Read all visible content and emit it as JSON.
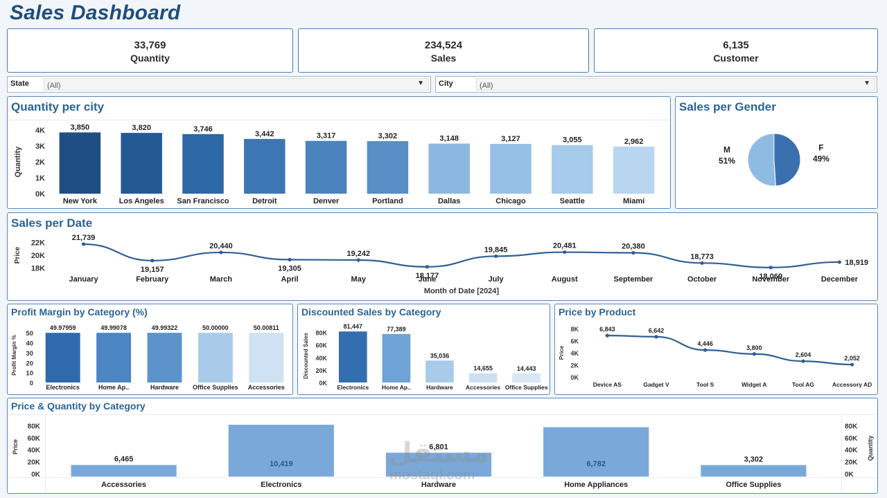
{
  "page_title": "Sales Dashboard",
  "kpis": [
    {
      "value": "33,769",
      "label": "Quantity"
    },
    {
      "value": "234,524",
      "label": "Sales"
    },
    {
      "value": "6,135",
      "label": "Customer"
    }
  ],
  "filters": {
    "state": {
      "label": "State",
      "value": "(All)"
    },
    "city": {
      "label": "City",
      "value": "(All)"
    }
  },
  "watermark": {
    "text": "مستقل",
    "subtext": "mostaql.com"
  },
  "colors": {
    "dark": "#1f4e7a",
    "mid": "#3f7ab6",
    "light": "#b8d5ef",
    "line": "#2f5f94",
    "title": "#2a6496"
  },
  "chart_data": [
    {
      "id": "qty_city",
      "type": "bar",
      "title": "Quantity per city",
      "ylabel": "Quantity",
      "xlabel": "",
      "ylim": [
        0,
        4000
      ],
      "yticks": [
        "0K",
        "1K",
        "2K",
        "3K",
        "4K"
      ],
      "categories": [
        "New York",
        "Los Angeles",
        "San Francisco",
        "Detroit",
        "Denver",
        "Portland",
        "Dallas",
        "Chicago",
        "Seattle",
        "Miami"
      ],
      "values": [
        3850,
        3820,
        3746,
        3442,
        3317,
        3302,
        3148,
        3127,
        3055,
        2962
      ],
      "labels": [
        "3,850",
        "3,820",
        "3,746",
        "3,442",
        "3,317",
        "3,302",
        "3,148",
        "3,127",
        "3,055",
        "2,962"
      ],
      "colors": [
        "#1f4e85",
        "#245a94",
        "#2c67a6",
        "#3d77b3",
        "#4a83bd",
        "#578fc6",
        "#8bb8e0",
        "#97c0e5",
        "#a7cbea",
        "#b9d6f0"
      ],
      "grid": false
    },
    {
      "id": "gender",
      "type": "pie",
      "title": "Sales per Gender",
      "slices": [
        {
          "name": "F",
          "value": 49,
          "label": "49%",
          "color": "#3a6fae"
        },
        {
          "name": "M",
          "value": 51,
          "label": "51%",
          "color": "#8fbbe3"
        }
      ]
    },
    {
      "id": "sales_date",
      "type": "line",
      "title": "Sales per Date",
      "ylabel": "Price",
      "xlabel": "Month of Date [2024]",
      "ylim": [
        17500,
        22500
      ],
      "yticks": [
        "18K",
        "20K",
        "22K"
      ],
      "categories": [
        "January",
        "February",
        "March",
        "April",
        "May",
        "June",
        "July",
        "August",
        "September",
        "October",
        "November",
        "December"
      ],
      "values": [
        21739,
        19157,
        20440,
        19305,
        19242,
        18177,
        19845,
        20481,
        20380,
        18773,
        18069,
        18919
      ],
      "labels": [
        "21,739",
        "19,157",
        "20,440",
        "19,305",
        "19,242",
        "18,177",
        "19,845",
        "20,481",
        "20,380",
        "18,773",
        "18,069",
        "18,919"
      ]
    },
    {
      "id": "profit_margin",
      "type": "bar",
      "title": "Profit Margin by Category (%)",
      "ylabel": "Profit Margin %",
      "ylim": [
        0,
        55
      ],
      "yticks": [
        "0",
        "10",
        "20",
        "30",
        "40",
        "50"
      ],
      "categories": [
        "Electronics",
        "Home Ap..",
        "Hardware",
        "Office Supplies",
        "Accessories"
      ],
      "values": [
        49.97959,
        49.99078,
        49.99322,
        50.0,
        50.00811
      ],
      "labels": [
        "49.97959",
        "49.99078",
        "49.99322",
        "50.00000",
        "50.00811"
      ],
      "colors": [
        "#2f6aac",
        "#4b85c2",
        "#5c93cb",
        "#a8cbea",
        "#cfe2f3"
      ]
    },
    {
      "id": "discounted",
      "type": "bar",
      "title": "Discounted Sales by Category",
      "ylabel": "Discounted Sales",
      "ylim": [
        0,
        85000
      ],
      "yticks": [
        "0K",
        "20K",
        "40K",
        "60K",
        "80K"
      ],
      "categories": [
        "Electronics",
        "Home Ap..",
        "Hardware",
        "Accessories",
        "Office Supplies"
      ],
      "values": [
        81447,
        77389,
        35036,
        14655,
        14443
      ],
      "labels": [
        "81,447",
        "77,389",
        "35,036",
        "14,655",
        "14,443"
      ],
      "colors": [
        "#336fae",
        "#6fa3d6",
        "#a9cbea",
        "#cce0f2",
        "#d7e7f5"
      ]
    },
    {
      "id": "price_product",
      "type": "line",
      "title": "Price by Product",
      "ylabel": "Price",
      "ylim": [
        0,
        8000
      ],
      "yticks": [
        "0K",
        "2K",
        "4K",
        "6K",
        "8K"
      ],
      "categories": [
        "Device AS",
        "Gadget V",
        "Tool S",
        "Widget A",
        "Tool AG",
        "Accessory AD"
      ],
      "values": [
        6843,
        6642,
        4446,
        3800,
        2604,
        2052
      ],
      "labels": [
        "6,843",
        "6,642",
        "4,446",
        "3,800",
        "2,604",
        "2,052"
      ]
    },
    {
      "id": "price_qty",
      "type": "bar",
      "title": "Price & Quantity by Category",
      "ylabel": "Price",
      "y2label": "Quantity",
      "ylim": [
        0,
        85000
      ],
      "yticks": [
        "0K",
        "20K",
        "40K",
        "60K",
        "80K"
      ],
      "categories": [
        "Accessories",
        "Electronics",
        "Hardware",
        "Home Appliances",
        "Office Supplies"
      ],
      "price": [
        14655,
        81447,
        35036,
        77389,
        14443
      ],
      "quantity": [
        6465,
        10419,
        6801,
        6782,
        3302
      ],
      "labels": [
        "6,465",
        "10,419",
        "6,801",
        "6,782",
        "3,302"
      ],
      "color": "#7aa9d9"
    }
  ]
}
